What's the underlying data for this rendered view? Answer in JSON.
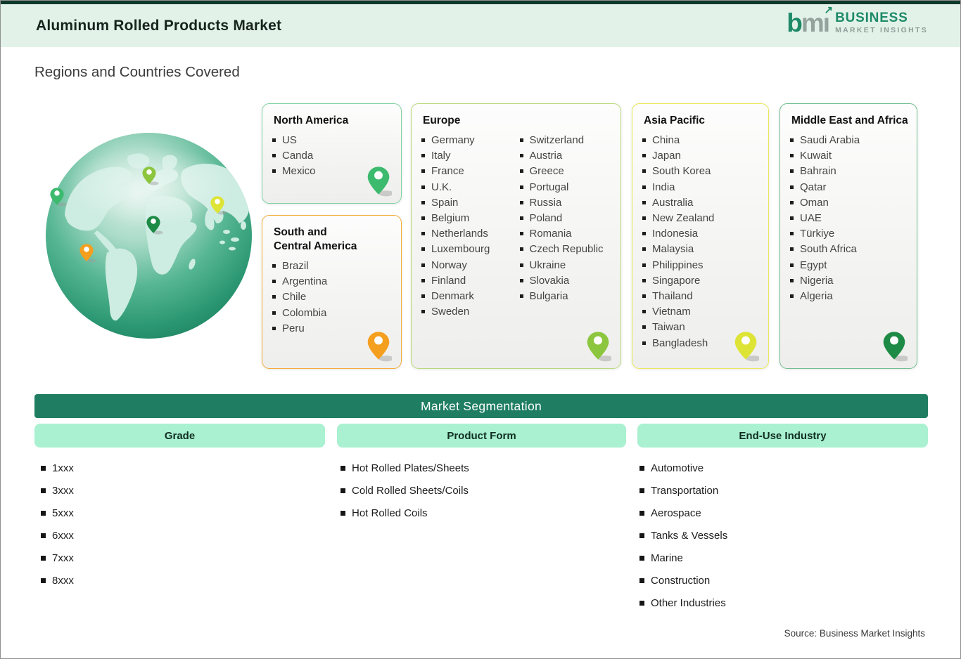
{
  "header": {
    "title": "Aluminum Rolled Products Market",
    "logo": {
      "mark_b": "b",
      "mark_m": "mı",
      "arrow": "↗",
      "line1": "BUSINESS",
      "line2": "MARKET INSIGHTS"
    }
  },
  "section_title": "Regions and Countries Covered",
  "regions": [
    {
      "name": "North America",
      "title_lines": [
        "North America"
      ],
      "columns": [
        [
          "US",
          "Canda",
          "Mexico"
        ]
      ],
      "border_color": "#7fd2a3",
      "pin_color": "#3cba6e"
    },
    {
      "name": "South and Central America",
      "title_lines": [
        "South and",
        "Central America"
      ],
      "columns": [
        [
          "Brazil",
          "Argentina",
          "Chile",
          "Colombia",
          "Peru"
        ]
      ],
      "border_color": "#f3ac3c",
      "pin_color": "#f59f1e"
    },
    {
      "name": "Europe",
      "title_lines": [
        "Europe"
      ],
      "columns": [
        [
          "Germany",
          "Italy",
          "France",
          "U.K.",
          "Spain",
          "Belgium",
          "Netherlands",
          "Luxembourg",
          "Norway",
          "Finland",
          "Denmark",
          "Sweden"
        ],
        [
          "Switzerland",
          "Austria",
          "Greece",
          "Portugal",
          "Russia",
          "Poland",
          "Romania",
          "Czech Republic",
          "Ukraine",
          "Slovakia",
          "Bulgaria"
        ]
      ],
      "border_color": "#b9da7a",
      "pin_color": "#8cc63e"
    },
    {
      "name": "Asia Pacific",
      "title_lines": [
        "Asia Pacific"
      ],
      "columns": [
        [
          "China",
          "Japan",
          "South Korea",
          "India",
          "Australia",
          "New Zealand",
          "Indonesia",
          "Malaysia",
          "Philippines",
          "Singapore",
          "Thailand",
          "Vietnam",
          "Taiwan",
          "Bangladesh"
        ]
      ],
      "border_color": "#e9e75a",
      "pin_color": "#dde436"
    },
    {
      "name": "Middle East and Africa",
      "title_lines": [
        "Middle East and Africa"
      ],
      "columns": [
        [
          "Saudi Arabia",
          "Kuwait",
          "Bahrain",
          "Qatar",
          "Oman",
          "UAE",
          "Türkiye",
          "South Africa",
          "Egypt",
          "Nigeria",
          "Algeria"
        ]
      ],
      "border_color": "#6fbd90",
      "pin_color": "#1d8a45"
    }
  ],
  "segmentation": {
    "title": "Market Segmentation",
    "columns": [
      {
        "header": "Grade",
        "items": [
          "1xxx",
          "3xxx",
          "5xxx",
          "6xxx",
          "7xxx",
          "8xxx"
        ]
      },
      {
        "header": "Product Form",
        "items": [
          "Hot Rolled Plates/Sheets",
          "Cold Rolled Sheets/Coils",
          "Hot Rolled Coils"
        ]
      },
      {
        "header": "End-Use Industry",
        "items": [
          "Automotive",
          "Transportation",
          "Aerospace",
          "Tanks & Vessels",
          "Marine",
          "Construction",
          "Other Industries"
        ]
      }
    ]
  },
  "source": "Source: Business Market Insights",
  "colors": {
    "accent_dark": "#1f7e62",
    "pill_bg": "#a9f1d0",
    "header_bg": "#e2f2e9",
    "brand_green": "#1e8a68"
  }
}
